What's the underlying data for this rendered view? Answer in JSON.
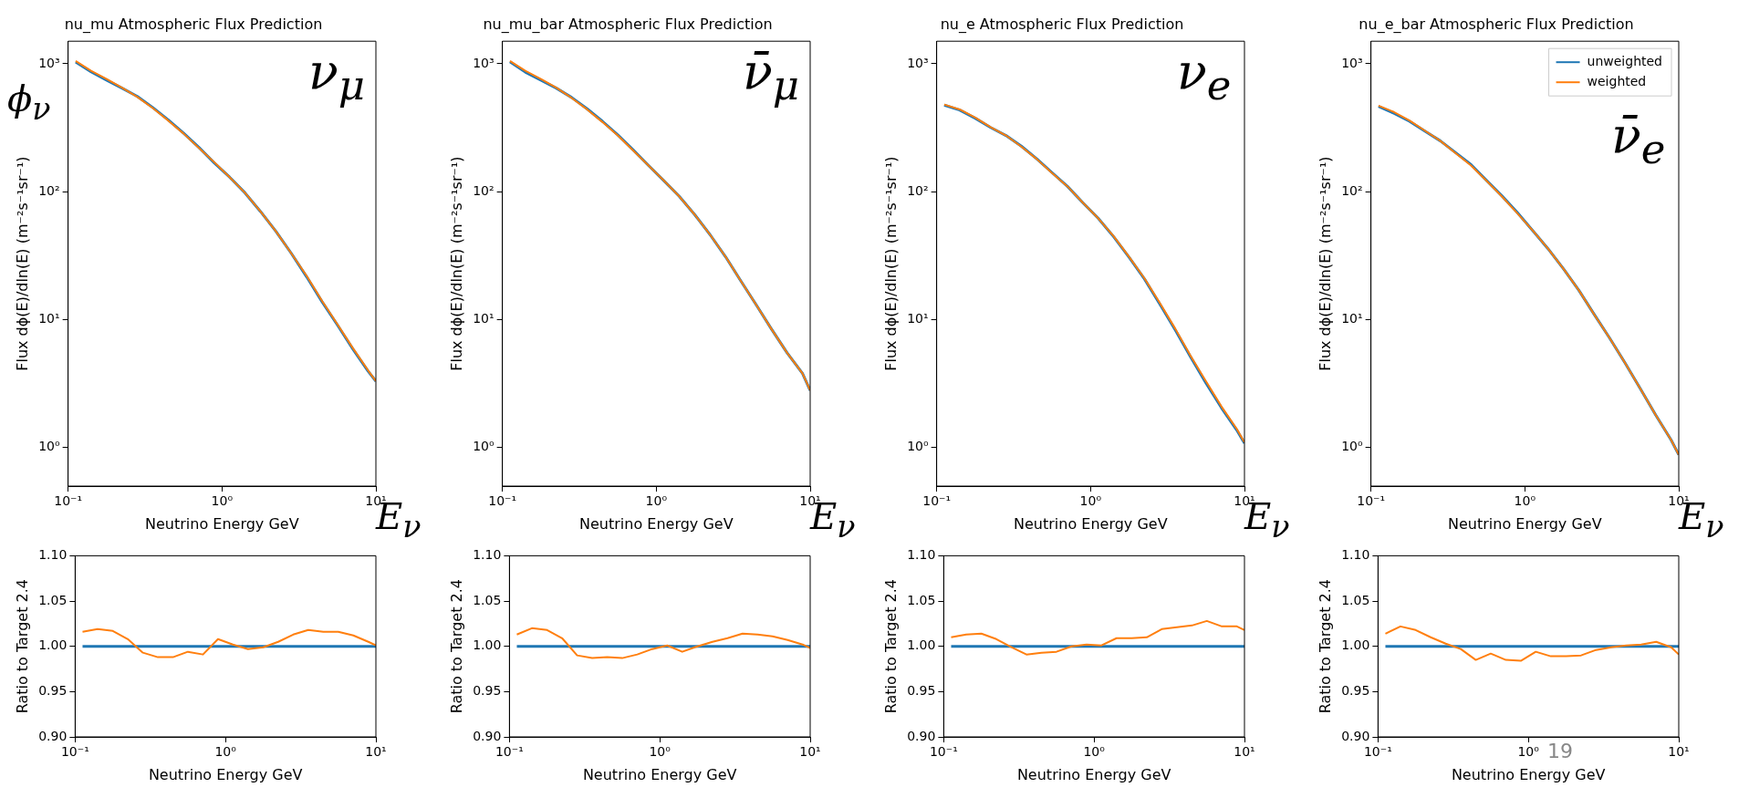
{
  "chart_data": [
    {
      "type": "line",
      "title": "nu_mu Atmospheric Flux Prediction",
      "xlabel": "Neutrino Energy GeV",
      "ylabel": "Flux dϕ(E)/dln(E) (m⁻²s⁻¹sr⁻¹)",
      "log": "xy",
      "grid": false,
      "xlim": [
        0.1,
        10
      ],
      "ylim": [
        0.5,
        1500
      ],
      "xticks": [
        {
          "value": 0.1,
          "label": "10⁻¹"
        },
        {
          "value": 1,
          "label": "10⁰"
        },
        {
          "value": 10,
          "label": "10¹"
        }
      ],
      "yticks": [
        {
          "value": 1,
          "label": "10⁰"
        },
        {
          "value": 10,
          "label": "10¹"
        },
        {
          "value": 100,
          "label": "10²"
        },
        {
          "value": 1000,
          "label": "10³"
        }
      ],
      "x": [
        0.112,
        0.141,
        0.178,
        0.224,
        0.282,
        0.355,
        0.447,
        0.562,
        0.708,
        0.891,
        1.12,
        1.41,
        1.78,
        2.24,
        2.82,
        3.55,
        4.47,
        5.62,
        7.08,
        8.91,
        10
      ],
      "series": [
        {
          "color": "#1f77b4",
          "values": [
            1030,
            865,
            745,
            645,
            555,
            455,
            365,
            287,
            222,
            168,
            130,
            98,
            70,
            49,
            33,
            21.6,
            13.8,
            9.1,
            5.9,
            3.95,
            3.3
          ]
        },
        {
          "color": "#ff7f0e",
          "values": [
            1050,
            880,
            760,
            650,
            550,
            450,
            360,
            285,
            220,
            170,
            130,
            98,
            70,
            49,
            33,
            22,
            14,
            9.2,
            6,
            4,
            3.3
          ]
        }
      ],
      "annotations": [
        "ν$_{μ}$",
        "E$_{ν}$",
        "ϕ$_{ν}$"
      ]
    },
    {
      "type": "line",
      "title": "nu_mu_bar Atmospheric Flux Prediction",
      "xlabel": "Neutrino Energy GeV",
      "ylabel": "Flux dϕ(E)/dln(E) (m⁻²s⁻¹sr⁻¹)",
      "log": "xy",
      "grid": false,
      "xlim": [
        0.1,
        10
      ],
      "ylim": [
        0.5,
        1500
      ],
      "xticks": [
        {
          "value": 0.1,
          "label": "10⁻¹"
        },
        {
          "value": 1,
          "label": "10⁰"
        },
        {
          "value": 10,
          "label": "10¹"
        }
      ],
      "yticks": [
        {
          "value": 1,
          "label": "10⁰"
        },
        {
          "value": 10,
          "label": "10¹"
        },
        {
          "value": 100,
          "label": "10²"
        },
        {
          "value": 1000,
          "label": "10³"
        }
      ],
      "x": [
        0.112,
        0.141,
        0.178,
        0.224,
        0.282,
        0.355,
        0.447,
        0.562,
        0.708,
        0.891,
        1.12,
        1.41,
        1.78,
        2.24,
        2.82,
        3.55,
        4.47,
        5.62,
        7.08,
        8.91,
        10
      ],
      "series": [
        {
          "color": "#1f77b4",
          "values": [
            1035,
            860,
            745,
            645,
            545,
            445,
            355,
            278,
            212,
            160,
            122,
            92,
            66,
            46,
            31,
            20,
            13,
            8.4,
            5.5,
            3.8,
            2.8
          ]
        },
        {
          "color": "#ff7f0e",
          "values": [
            1050,
            880,
            760,
            650,
            540,
            440,
            350,
            275,
            210,
            160,
            122,
            92,
            66,
            46,
            31,
            20,
            13,
            8.4,
            5.5,
            3.8,
            2.8
          ]
        }
      ],
      "annotations": [
        "ν̄$_{μ}$",
        "E$_{ν}$"
      ]
    },
    {
      "type": "line",
      "title": "nu_e Atmospheric Flux Prediction",
      "xlabel": "Neutrino Energy GeV",
      "ylabel": "Flux dϕ(E)/dln(E) (m⁻²s⁻¹sr⁻¹)",
      "log": "xy",
      "grid": false,
      "xlim": [
        0.1,
        10
      ],
      "ylim": [
        0.5,
        1500
      ],
      "xticks": [
        {
          "value": 0.1,
          "label": "10⁻¹"
        },
        {
          "value": 1,
          "label": "10⁰"
        },
        {
          "value": 10,
          "label": "10¹"
        }
      ],
      "yticks": [
        {
          "value": 1,
          "label": "10⁰"
        },
        {
          "value": 10,
          "label": "10¹"
        },
        {
          "value": 100,
          "label": "10²"
        },
        {
          "value": 1000,
          "label": "10³"
        }
      ],
      "x": [
        0.112,
        0.141,
        0.178,
        0.224,
        0.282,
        0.355,
        0.447,
        0.562,
        0.708,
        0.891,
        1.12,
        1.41,
        1.78,
        2.24,
        2.82,
        3.55,
        4.47,
        5.62,
        7.08,
        8.91,
        10
      ],
      "series": [
        {
          "color": "#1f77b4",
          "values": [
            475,
            435,
            375,
            318,
            275,
            227,
            181,
            141,
            110,
            82,
            62,
            44.6,
            30.7,
            20.8,
            13.2,
            8.3,
            5.1,
            3.2,
            2.05,
            1.37,
            1.08
          ]
        },
        {
          "color": "#ff7f0e",
          "values": [
            480,
            440,
            380,
            320,
            275,
            225,
            180,
            140,
            110,
            82,
            62,
            45,
            31,
            21,
            13.5,
            8.5,
            5.2,
            3.3,
            2.1,
            1.4,
            1.1
          ]
        }
      ],
      "annotations": [
        "ν$_{e}$",
        "E$_{ν}$"
      ]
    },
    {
      "type": "line",
      "title": "nu_e_bar Atmospheric Flux Prediction",
      "xlabel": "Neutrino Energy GeV",
      "ylabel": "Flux dϕ(E)/dln(E) (m⁻²s⁻¹sr⁻¹)",
      "log": "xy",
      "grid": false,
      "legend": "top right",
      "xlim": [
        0.1,
        10
      ],
      "ylim": [
        0.5,
        1500
      ],
      "xticks": [
        {
          "value": 0.1,
          "label": "10⁻¹"
        },
        {
          "value": 1,
          "label": "10⁰"
        },
        {
          "value": 10,
          "label": "10¹"
        }
      ],
      "yticks": [
        {
          "value": 1,
          "label": "10⁰"
        },
        {
          "value": 10,
          "label": "10¹"
        },
        {
          "value": 100,
          "label": "10²"
        },
        {
          "value": 1000,
          "label": "10³"
        }
      ],
      "x": [
        0.112,
        0.141,
        0.178,
        0.224,
        0.282,
        0.355,
        0.447,
        0.562,
        0.708,
        0.891,
        1.12,
        1.41,
        1.78,
        2.24,
        2.82,
        3.55,
        4.47,
        5.62,
        7.08,
        8.91,
        10
      ],
      "series": [
        {
          "name": "unweighted",
          "color": "#1f77b4",
          "values": [
            465,
            410,
            355,
            298,
            250,
            202,
            163,
            123,
            93,
            69,
            50,
            36,
            25,
            17,
            11,
            7.2,
            4.6,
            2.9,
            1.8,
            1.15,
            0.88
          ]
        },
        {
          "name": "weighted",
          "color": "#ff7f0e",
          "values": [
            470,
            420,
            360,
            300,
            250,
            200,
            160,
            122,
            92,
            68,
            50,
            36,
            25,
            17,
            11,
            7.2,
            4.6,
            2.9,
            1.8,
            1.15,
            0.88
          ]
        }
      ],
      "annotations": [
        "ν̄$_{e}$",
        "E$_{ν}$"
      ]
    },
    {
      "type": "line",
      "xlabel": "Neutrino Energy GeV",
      "ylabel": "Ratio to Target 2.4",
      "log": "x",
      "grid": false,
      "xlim": [
        0.1,
        10
      ],
      "ylim": [
        0.9,
        1.1
      ],
      "xticks": [
        {
          "value": 0.1,
          "label": "10⁻¹"
        },
        {
          "value": 1,
          "label": "10⁰"
        },
        {
          "value": 10,
          "label": "10¹"
        }
      ],
      "yticks": [
        {
          "value": 0.9,
          "label": "0.90"
        },
        {
          "value": 0.95,
          "label": "0.95"
        },
        {
          "value": 1,
          "label": "1.00"
        },
        {
          "value": 1.05,
          "label": "1.05"
        },
        {
          "value": 1.1,
          "label": "1.10"
        }
      ],
      "x": [
        0.112,
        0.141,
        0.178,
        0.224,
        0.282,
        0.355,
        0.447,
        0.562,
        0.708,
        0.891,
        1.12,
        1.41,
        1.78,
        2.24,
        2.82,
        3.55,
        4.47,
        5.62,
        7.08,
        8.91,
        10
      ],
      "series": [
        {
          "color": "#1f77b4",
          "values": [
            1,
            1,
            1,
            1,
            1,
            1,
            1,
            1,
            1,
            1,
            1,
            1,
            1,
            1,
            1,
            1,
            1,
            1,
            1,
            1,
            1
          ]
        },
        {
          "color": "#ff7f0e",
          "values": [
            1.016,
            1.019,
            1.017,
            1.008,
            0.993,
            0.988,
            0.988,
            0.994,
            0.991,
            1.008,
            1.002,
            0.997,
            0.999,
            1.005,
            1.013,
            1.018,
            1.016,
            1.016,
            1.012,
            1.005,
            1.001
          ]
        }
      ]
    },
    {
      "type": "line",
      "xlabel": "Neutrino Energy GeV",
      "ylabel": "Ratio to Target 2.4",
      "log": "x",
      "grid": false,
      "xlim": [
        0.1,
        10
      ],
      "ylim": [
        0.9,
        1.1
      ],
      "xticks": [
        {
          "value": 0.1,
          "label": "10⁻¹"
        },
        {
          "value": 1,
          "label": "10⁰"
        },
        {
          "value": 10,
          "label": "10¹"
        }
      ],
      "yticks": [
        {
          "value": 0.9,
          "label": "0.90"
        },
        {
          "value": 0.95,
          "label": "0.95"
        },
        {
          "value": 1,
          "label": "1.00"
        },
        {
          "value": 1.05,
          "label": "1.05"
        },
        {
          "value": 1.1,
          "label": "1.10"
        }
      ],
      "x": [
        0.112,
        0.141,
        0.178,
        0.224,
        0.282,
        0.355,
        0.447,
        0.562,
        0.708,
        0.891,
        1.12,
        1.41,
        1.78,
        2.24,
        2.82,
        3.55,
        4.47,
        5.62,
        7.08,
        8.91,
        10
      ],
      "series": [
        {
          "color": "#1f77b4",
          "values": [
            1,
            1,
            1,
            1,
            1,
            1,
            1,
            1,
            1,
            1,
            1,
            1,
            1,
            1,
            1,
            1,
            1,
            1,
            1,
            1,
            1
          ]
        },
        {
          "color": "#ff7f0e",
          "values": [
            1.013,
            1.02,
            1.018,
            1.009,
            0.99,
            0.987,
            0.988,
            0.987,
            0.991,
            0.997,
            1.001,
            0.994,
            1.0,
            1.005,
            1.009,
            1.014,
            1.013,
            1.011,
            1.007,
            1.002,
            0.998
          ]
        }
      ]
    },
    {
      "type": "line",
      "xlabel": "Neutrino Energy GeV",
      "ylabel": "Ratio to Target 2.4",
      "log": "x",
      "grid": false,
      "xlim": [
        0.1,
        10
      ],
      "ylim": [
        0.9,
        1.1
      ],
      "xticks": [
        {
          "value": 0.1,
          "label": "10⁻¹"
        },
        {
          "value": 1,
          "label": "10⁰"
        },
        {
          "value": 10,
          "label": "10¹"
        }
      ],
      "yticks": [
        {
          "value": 0.9,
          "label": "0.90"
        },
        {
          "value": 0.95,
          "label": "0.95"
        },
        {
          "value": 1,
          "label": "1.00"
        },
        {
          "value": 1.05,
          "label": "1.05"
        },
        {
          "value": 1.1,
          "label": "1.10"
        }
      ],
      "x": [
        0.112,
        0.141,
        0.178,
        0.224,
        0.282,
        0.355,
        0.447,
        0.562,
        0.708,
        0.891,
        1.12,
        1.41,
        1.78,
        2.24,
        2.82,
        3.55,
        4.47,
        5.62,
        7.08,
        8.91,
        10
      ],
      "series": [
        {
          "color": "#1f77b4",
          "values": [
            1,
            1,
            1,
            1,
            1,
            1,
            1,
            1,
            1,
            1,
            1,
            1,
            1,
            1,
            1,
            1,
            1,
            1,
            1,
            1,
            1
          ]
        },
        {
          "color": "#ff7f0e",
          "values": [
            1.01,
            1.013,
            1.014,
            1.008,
            0.999,
            0.991,
            0.993,
            0.994,
            1.0,
            1.002,
            1.001,
            1.009,
            1.009,
            1.01,
            1.019,
            1.021,
            1.023,
            1.028,
            1.022,
            1.022,
            1.018
          ]
        }
      ]
    },
    {
      "type": "line",
      "xlabel": "Neutrino Energy GeV",
      "ylabel": "Ratio to Target 2.4",
      "log": "x",
      "grid": false,
      "xlim": [
        0.1,
        10
      ],
      "ylim": [
        0.9,
        1.1
      ],
      "xticks": [
        {
          "value": 0.1,
          "label": "10⁻¹"
        },
        {
          "value": 1,
          "label": "10⁰"
        },
        {
          "value": 10,
          "label": "10¹"
        }
      ],
      "yticks": [
        {
          "value": 0.9,
          "label": "0.90"
        },
        {
          "value": 0.95,
          "label": "0.95"
        },
        {
          "value": 1,
          "label": "1.00"
        },
        {
          "value": 1.05,
          "label": "1.05"
        },
        {
          "value": 1.1,
          "label": "1.10"
        }
      ],
      "x": [
        0.112,
        0.141,
        0.178,
        0.224,
        0.282,
        0.355,
        0.447,
        0.562,
        0.708,
        0.891,
        1.12,
        1.41,
        1.78,
        2.24,
        2.82,
        3.55,
        4.47,
        5.62,
        7.08,
        8.91,
        10
      ],
      "series": [
        {
          "color": "#1f77b4",
          "values": [
            1,
            1,
            1,
            1,
            1,
            1,
            1,
            1,
            1,
            1,
            1,
            1,
            1,
            1,
            1,
            1,
            1,
            1,
            1,
            1,
            1
          ]
        },
        {
          "color": "#ff7f0e",
          "values": [
            1.014,
            1.022,
            1.018,
            1.01,
            1.003,
            0.997,
            0.985,
            0.992,
            0.985,
            0.984,
            0.994,
            0.989,
            0.989,
            0.99,
            0.996,
            0.999,
            1.001,
            1.002,
            1.005,
            0.999,
            0.991
          ]
        }
      ],
      "annotations": [
        "19"
      ]
    }
  ]
}
